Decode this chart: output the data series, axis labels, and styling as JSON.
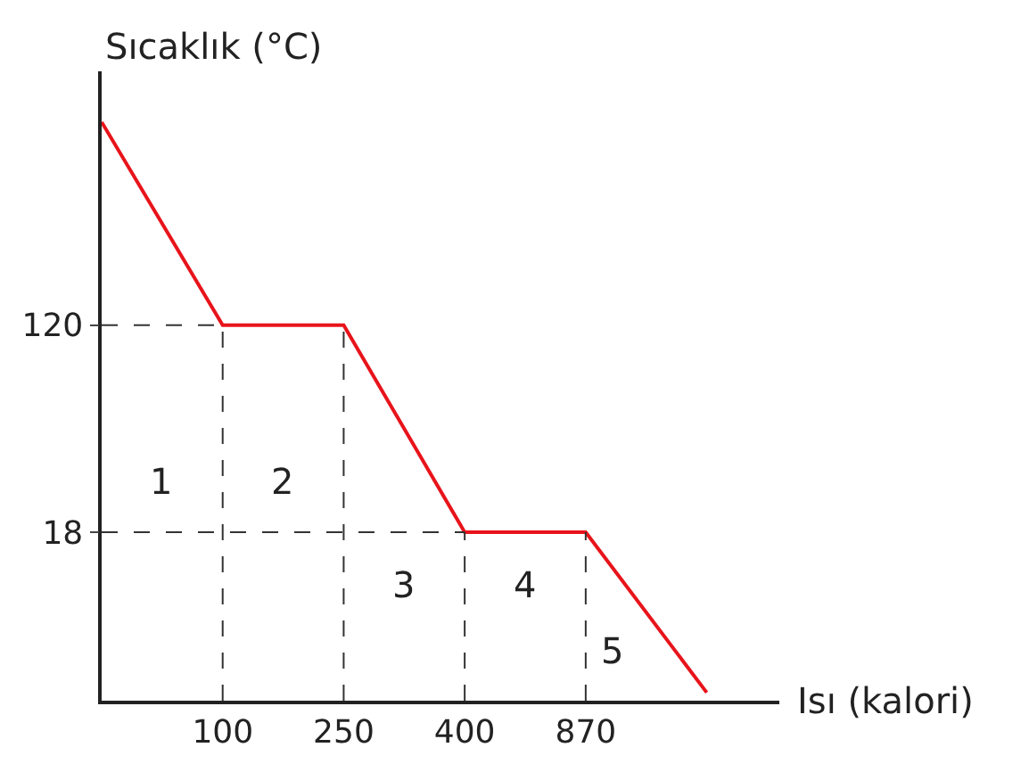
{
  "chart_data": {
    "type": "line",
    "ylabel": "Sıcaklık (°C)",
    "xlabel": "Isı (kalori)",
    "categories": [
      null,
      "100",
      "250",
      "400",
      "870",
      null
    ],
    "series": [
      {
        "color": "#e8141b",
        "values": [
          220,
          120,
          120,
          18,
          18,
          -61
        ]
      }
    ],
    "ylim": [
      -65,
      245
    ],
    "yticks": [
      18,
      120
    ],
    "ref_lines": [
      {
        "axis": "y",
        "value": 120,
        "line_style": "dashed",
        "color": "#333333"
      },
      {
        "axis": "y",
        "value": 18,
        "line_style": "dashed",
        "color": "#333333"
      },
      {
        "axis": "x",
        "value": "100",
        "line_style": "dashed",
        "color": "#333333"
      },
      {
        "axis": "x",
        "value": "250",
        "line_style": "dashed",
        "color": "#333333"
      },
      {
        "axis": "x",
        "value": "400",
        "line_style": "dashed",
        "color": "#333333"
      },
      {
        "axis": "x",
        "value": "870",
        "line_style": "dashed",
        "color": "#333333"
      }
    ],
    "annotations": [
      "1",
      "2",
      "3",
      "4",
      "5"
    ],
    "marker": "none",
    "line_style": "solid"
  }
}
